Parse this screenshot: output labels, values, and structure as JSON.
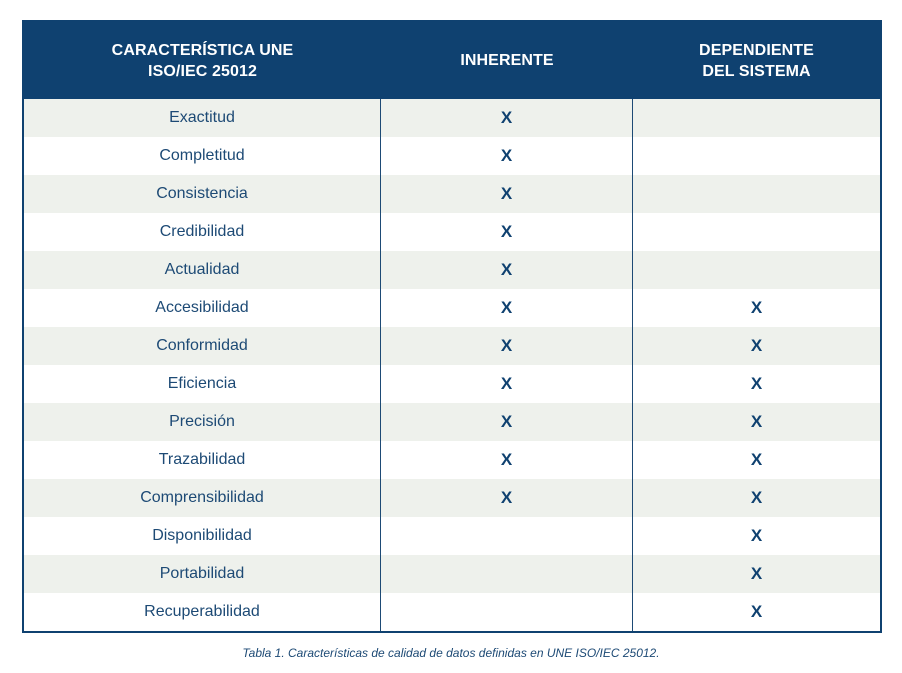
{
  "table": {
    "headers": [
      "CARACTERÍSTICA UNE\nISO/IEC 25012",
      "INHERENTE",
      "DEPENDIENTE\nDEL SISTEMA"
    ],
    "rows": [
      {
        "name": "Exactitud",
        "inherente": "X",
        "dependiente": ""
      },
      {
        "name": "Completitud",
        "inherente": "X",
        "dependiente": ""
      },
      {
        "name": "Consistencia",
        "inherente": "X",
        "dependiente": ""
      },
      {
        "name": "Credibilidad",
        "inherente": "X",
        "dependiente": ""
      },
      {
        "name": "Actualidad",
        "inherente": "X",
        "dependiente": ""
      },
      {
        "name": "Accesibilidad",
        "inherente": "X",
        "dependiente": "X"
      },
      {
        "name": "Conformidad",
        "inherente": "X",
        "dependiente": "X"
      },
      {
        "name": "Eficiencia",
        "inherente": "X",
        "dependiente": "X"
      },
      {
        "name": "Precisión",
        "inherente": "X",
        "dependiente": "X"
      },
      {
        "name": "Trazabilidad",
        "inherente": "X",
        "dependiente": "X"
      },
      {
        "name": "Comprensibilidad",
        "inherente": "X",
        "dependiente": "X"
      },
      {
        "name": "Disponibilidad",
        "inherente": "",
        "dependiente": "X"
      },
      {
        "name": "Portabilidad",
        "inherente": "",
        "dependiente": "X"
      },
      {
        "name": "Recuperabilidad",
        "inherente": "",
        "dependiente": "X"
      }
    ],
    "colors": {
      "header_bg": "#0f4170",
      "stripe": "#eef1ec",
      "text": "#1d4a75"
    }
  },
  "caption": "Tabla 1. Características de calidad de datos definidas en UNE ISO/IEC 25012."
}
